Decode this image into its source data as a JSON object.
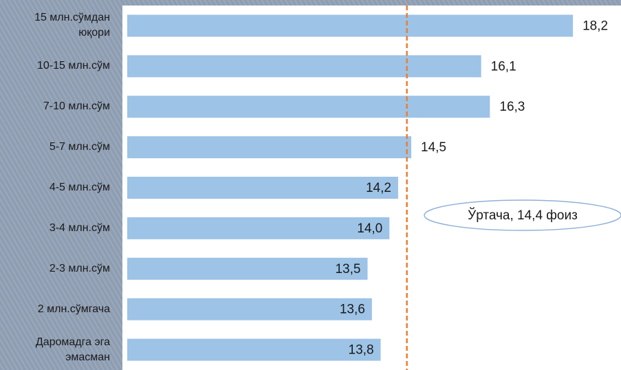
{
  "chart_data": {
    "type": "bar",
    "orientation": "horizontal",
    "categories": [
      "15 млн.сўмдан юқори",
      "10-15 млн.сўм",
      "7-10 млн.сўм",
      "5-7 млн.сўм",
      "4-5 млн.сўм",
      "3-4 млн.сўм",
      "2-3 млн.сўм",
      "2 млн.сўмгача",
      "Даромадга эга эмасман"
    ],
    "values": [
      18.2,
      16.1,
      16.3,
      14.5,
      14.2,
      14.0,
      13.5,
      13.6,
      13.8
    ],
    "value_labels": [
      "18,2",
      "16,1",
      "16,3",
      "14,5",
      "14,2",
      "14,0",
      "13,5",
      "13,6",
      "13,8"
    ],
    "color": "#9dc3e6",
    "xlim": [
      8,
      19.3
    ],
    "reference_line": {
      "value": 14.4,
      "color": "#ed7d31"
    },
    "annotations": [
      {
        "text": "Ўртача, 14,4 фоиз"
      }
    ]
  }
}
